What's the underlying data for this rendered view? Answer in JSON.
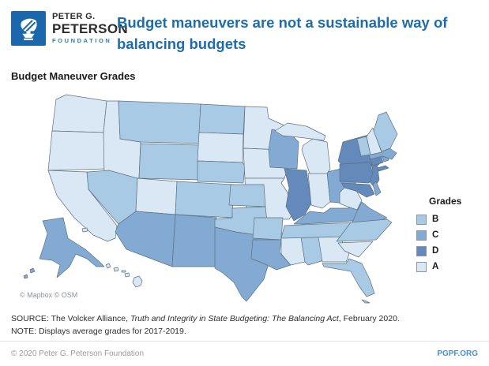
{
  "header": {
    "logo": {
      "line1": "PETER G.",
      "line2": "PETERSON",
      "line3": "FOUNDATION"
    },
    "title_line1": "Budget maneuvers are not a sustainable way of",
    "title_line2": "balancing budgets",
    "title_color": "#1b6dad"
  },
  "map": {
    "heading": "Budget Maneuver Grades",
    "attribution": "© Mapbox © OSM"
  },
  "legend": {
    "title": "Grades",
    "items": [
      {
        "label": "B",
        "color": "#a9cae4"
      },
      {
        "label": "C",
        "color": "#83aad2"
      },
      {
        "label": "D",
        "color": "#6489bb"
      },
      {
        "label": "A",
        "color": "#d9e8f4"
      }
    ]
  },
  "chart_data": {
    "type": "choropleth-map",
    "geography": "United States",
    "title": "Budget Maneuver Grades",
    "legend_title": "Grades",
    "legend_order": [
      "B",
      "C",
      "D",
      "A"
    ],
    "period": "2017-2019",
    "grade_colors": {
      "A": "#d9e8f4",
      "B": "#a9cae4",
      "C": "#83aad2",
      "D": "#6489bb"
    },
    "state_grades": {
      "AL": "B",
      "AK": "C",
      "AZ": "C",
      "AR": "B",
      "CA": "A",
      "CO": "B",
      "CT": "D",
      "DE": "C",
      "FL": "B",
      "GA": "A",
      "HI": "A",
      "ID": "A",
      "IL": "D",
      "IN": "A",
      "IA": "A",
      "KS": "B",
      "KY": "C",
      "LA": "C",
      "ME": "B",
      "MD": "D",
      "MA": "C",
      "MI": "A",
      "MN": "A",
      "MS": "A",
      "MO": "A",
      "MT": "B",
      "NE": "B",
      "NV": "B",
      "NH": "A",
      "NJ": "D",
      "NM": "C",
      "NY": "D",
      "NC": "B",
      "ND": "B",
      "OH": "C",
      "OK": "B",
      "OR": "A",
      "PA": "D",
      "RI": "C",
      "SC": "A",
      "SD": "A",
      "TN": "B",
      "TX": "C",
      "UT": "A",
      "VT": "B",
      "VA": "C",
      "WA": "A",
      "WV": "A",
      "WI": "C",
      "WY": "B"
    }
  },
  "source": {
    "prefix": "SOURCE: The Volcker Alliance, ",
    "italic": "Truth and Integrity in State Budgeting: The Balancing Act",
    "suffix": ", February 2020.",
    "note": "NOTE: Displays average grades for 2017-2019."
  },
  "footer": {
    "copyright": "© 2020 Peter G. Peterson Foundation",
    "site": "PGPF.ORG"
  }
}
